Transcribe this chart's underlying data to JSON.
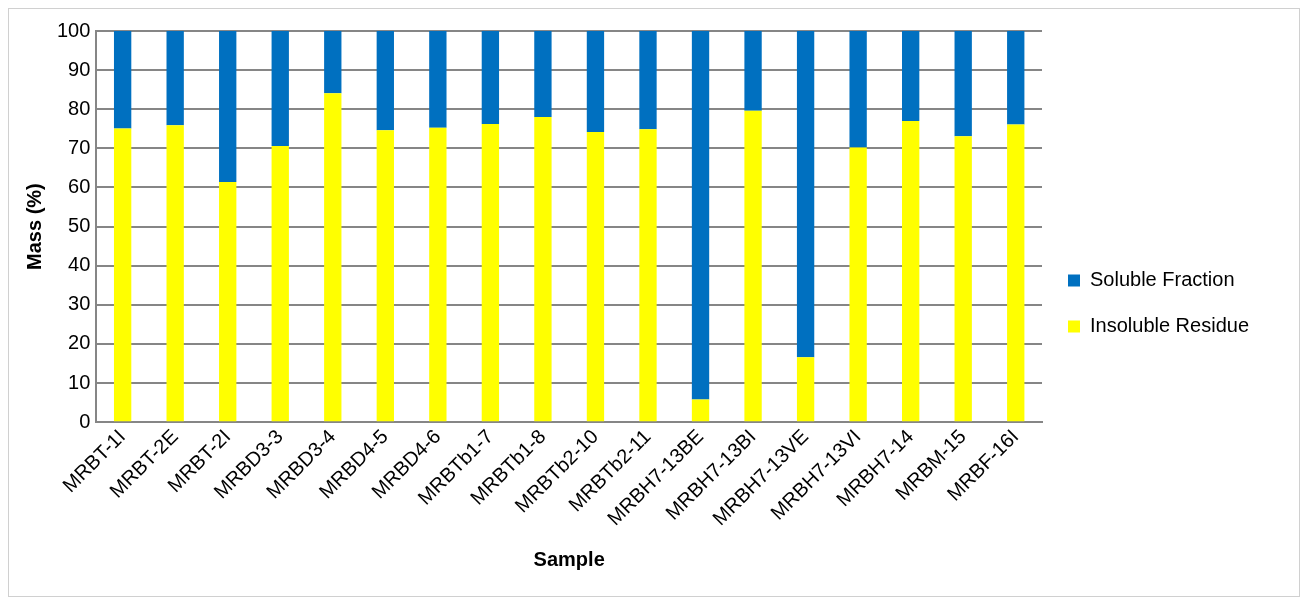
{
  "chart_data": {
    "type": "bar",
    "stacked": true,
    "xlabel": "Sample",
    "ylabel": "Mass (%)",
    "categories": [
      "MRBT-1I",
      "MRBT-2E",
      "MRBT-2I",
      "MRBD3-3",
      "MRBD3-4",
      "MRBD4-5",
      "MRBD4-6",
      "MRBTb1-7",
      "MRBTb1-8",
      "MRBTb2-10",
      "MRBTb2-11",
      "MRBH7-13BE",
      "MRBH7-13BI",
      "MRBH7-13VE",
      "MRBH7-13VI",
      "MRBH7-14",
      "MRBM-15",
      "MRBF-16I"
    ],
    "series": [
      {
        "name": "Insoluble Residue",
        "color": "#ffff00",
        "values": [
          75.1,
          75.9,
          61.4,
          70.6,
          84.1,
          74.6,
          75.3,
          76.2,
          78.0,
          74.2,
          74.9,
          5.8,
          79.6,
          16.6,
          70.2,
          77.0,
          73.1,
          76.1
        ]
      },
      {
        "name": "Soluble Fraction",
        "color": "#0070c0",
        "values": [
          24.9,
          24.1,
          38.6,
          29.4,
          15.9,
          25.4,
          24.7,
          23.8,
          22.0,
          25.8,
          25.1,
          94.2,
          20.4,
          83.4,
          29.8,
          23.0,
          26.9,
          23.9
        ]
      }
    ],
    "ylim": [
      0,
      100
    ],
    "yticks": [
      0,
      10,
      20,
      30,
      40,
      50,
      60,
      70,
      80,
      90,
      100
    ],
    "grid": "y",
    "legend": "right"
  }
}
